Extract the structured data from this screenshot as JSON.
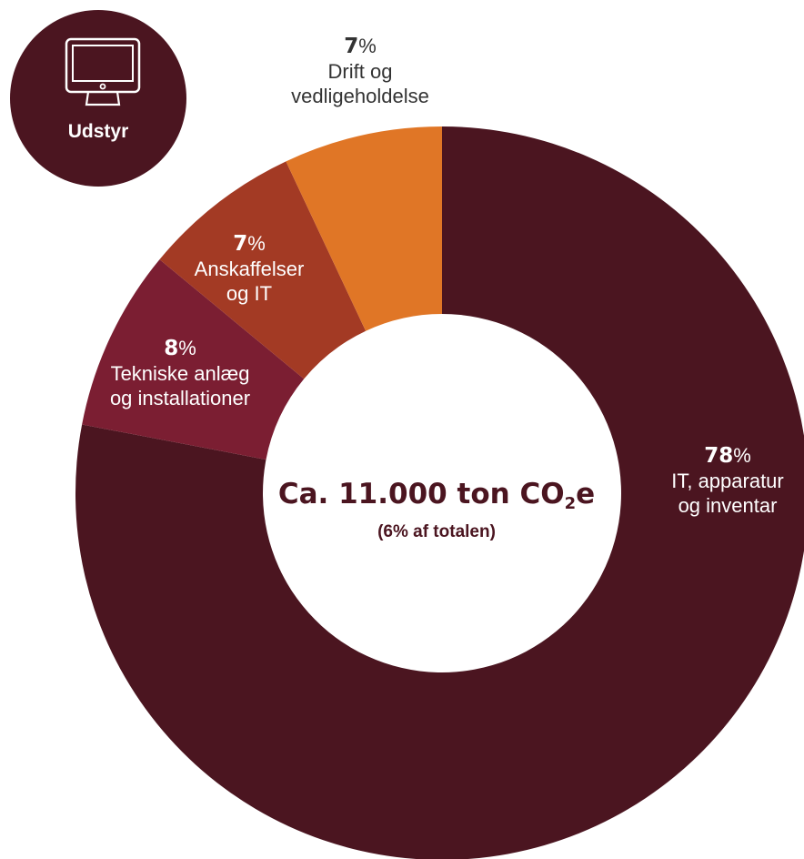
{
  "badge": {
    "label": "Udstyr",
    "icon": "monitor-icon",
    "color": "#4b1520"
  },
  "center": {
    "title_main": "Ca. 11.000 ton CO",
    "title_sub": "2",
    "title_end": "e",
    "subtitle": "(6% af totalen)"
  },
  "chart_data": {
    "type": "pie",
    "slices": [
      {
        "value": 78,
        "pct": "78",
        "line1": "IT, apparatur",
        "line2": "og inventar",
        "color": "#4b1520"
      },
      {
        "value": 8,
        "pct": "8",
        "line1": "Tekniske anlæg",
        "line2": "og installationer",
        "color": "#7b1e32"
      },
      {
        "value": 7,
        "pct": "7",
        "line1": "Anskaffelser",
        "line2": "og IT",
        "color": "#a33a24"
      },
      {
        "value": 7,
        "pct": "7",
        "line1": "Drift og",
        "line2": "vedligeholdelse",
        "color": "#e07626"
      }
    ]
  }
}
